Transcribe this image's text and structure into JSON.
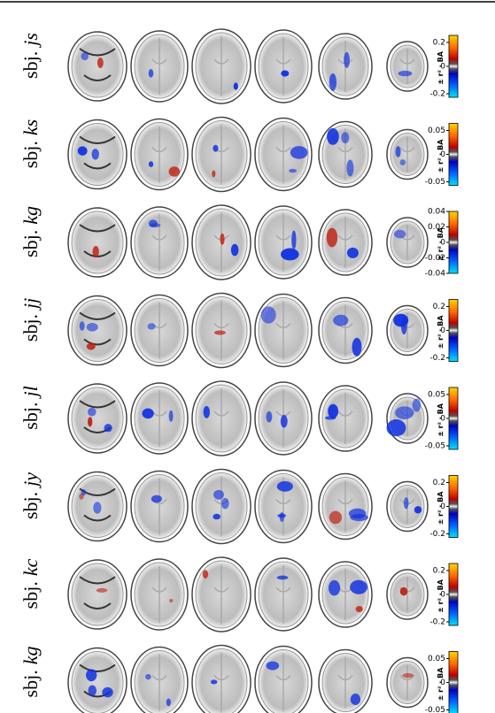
{
  "colorbar_label": "± r² · BA",
  "rows": [
    {
      "prefix": "sbj.",
      "subject": "js",
      "ticks": [
        "0.2",
        "0",
        "-0.2"
      ]
    },
    {
      "prefix": "sbj.",
      "subject": "ks",
      "ticks": [
        "0.05",
        "0",
        "-0.05"
      ]
    },
    {
      "prefix": "sbj.",
      "subject": "kg",
      "ticks": [
        "0.04",
        "0.02",
        "0",
        "-0.02",
        "-0.04"
      ]
    },
    {
      "prefix": "sbj.",
      "subject": "jj",
      "ticks": [
        "0.2",
        "0",
        "-0.2"
      ]
    },
    {
      "prefix": "sbj.",
      "subject": "jl",
      "ticks": [
        "0.05",
        "0",
        "-0.05"
      ]
    },
    {
      "prefix": "sbj.",
      "subject": "jy",
      "ticks": [
        "0.2",
        "0",
        "-0.2"
      ]
    },
    {
      "prefix": "sbj.",
      "subject": "kc",
      "ticks": [
        "0.2",
        "0",
        "-0.2"
      ]
    },
    {
      "prefix": "sbj.",
      "subject": "kg",
      "ticks": [
        "0.05",
        "0",
        "-0.05"
      ]
    }
  ]
}
